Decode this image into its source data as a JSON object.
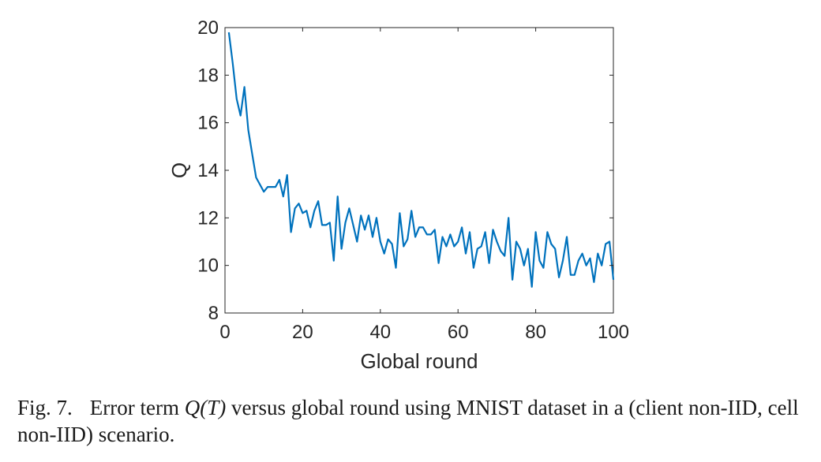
{
  "chart_data": {
    "type": "line",
    "xlabel": "Global round",
    "ylabel": "Q",
    "xlim": [
      0,
      100
    ],
    "ylim": [
      8,
      20
    ],
    "xticks": [
      0,
      20,
      40,
      60,
      80,
      100
    ],
    "yticks": [
      8,
      10,
      12,
      14,
      16,
      18,
      20
    ],
    "grid": false,
    "series": [
      {
        "color": "#0072BD",
        "x": [
          1,
          2,
          3,
          4,
          5,
          6,
          7,
          8,
          9,
          10,
          11,
          12,
          13,
          14,
          15,
          16,
          17,
          18,
          19,
          20,
          21,
          22,
          23,
          24,
          25,
          26,
          27,
          28,
          29,
          30,
          31,
          32,
          33,
          34,
          35,
          36,
          37,
          38,
          39,
          40,
          41,
          42,
          43,
          44,
          45,
          46,
          47,
          48,
          49,
          50,
          51,
          52,
          53,
          54,
          55,
          56,
          57,
          58,
          59,
          60,
          61,
          62,
          63,
          64,
          65,
          66,
          67,
          68,
          69,
          70,
          71,
          72,
          73,
          74,
          75,
          76,
          77,
          78,
          79,
          80,
          81,
          82,
          83,
          84,
          85,
          86,
          87,
          88,
          89,
          90,
          91,
          92,
          93,
          94,
          95,
          96,
          97,
          98,
          99,
          100
        ],
        "values": [
          19.8,
          18.5,
          17.0,
          16.3,
          17.5,
          15.7,
          14.7,
          13.7,
          13.4,
          13.1,
          13.3,
          13.3,
          13.3,
          13.6,
          12.9,
          13.8,
          11.4,
          12.4,
          12.6,
          12.2,
          12.3,
          11.6,
          12.3,
          12.7,
          11.7,
          11.7,
          11.8,
          10.2,
          12.9,
          10.7,
          11.8,
          12.4,
          11.7,
          11.0,
          12.1,
          11.5,
          12.1,
          11.2,
          12.0,
          11.0,
          10.5,
          11.1,
          10.9,
          9.9,
          12.2,
          10.8,
          11.1,
          12.3,
          11.2,
          11.6,
          11.6,
          11.3,
          11.3,
          11.5,
          10.1,
          11.2,
          10.8,
          11.3,
          10.8,
          11.0,
          11.6,
          10.5,
          11.4,
          9.9,
          10.7,
          10.8,
          11.4,
          10.1,
          11.5,
          11.0,
          10.6,
          10.4,
          12.0,
          9.4,
          11.0,
          10.7,
          10.0,
          10.7,
          9.1,
          11.4,
          10.2,
          9.9,
          11.4,
          10.9,
          10.7,
          9.5,
          10.2,
          11.2,
          9.6,
          9.6,
          10.2,
          10.5,
          10.0,
          10.3,
          9.3,
          10.5,
          10.0,
          10.9,
          11.0,
          9.4
        ]
      }
    ]
  },
  "caption": {
    "fig_label": "Fig. 7.",
    "before_math": "Error term ",
    "math": "Q(T)",
    "after_math": " versus global round using MNIST dataset in a (client non-IID, cell non-IID) scenario."
  }
}
